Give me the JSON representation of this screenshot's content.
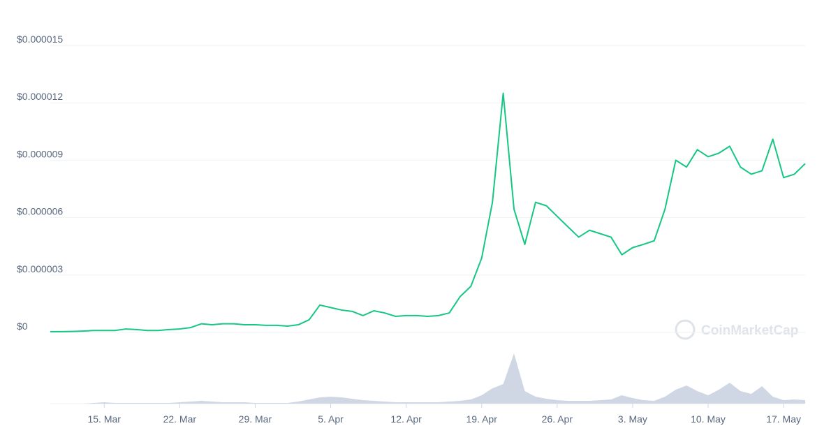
{
  "chart_data": {
    "type": "line",
    "x": [
      "10. Mar",
      "11. Mar",
      "12. Mar",
      "13. Mar",
      "14. Mar",
      "15. Mar",
      "16. Mar",
      "17. Mar",
      "18. Mar",
      "19. Mar",
      "20. Mar",
      "21. Mar",
      "22. Mar",
      "23. Mar",
      "24. Mar",
      "25. Mar",
      "26. Mar",
      "27. Mar",
      "28. Mar",
      "29. Mar",
      "30. Mar",
      "31. Mar",
      "1. Apr",
      "2. Apr",
      "3. Apr",
      "4. Apr",
      "5. Apr",
      "6. Apr",
      "7. Apr",
      "8. Apr",
      "9. Apr",
      "10. Apr",
      "11. Apr",
      "12. Apr",
      "13. Apr",
      "14. Apr",
      "15. Apr",
      "16. Apr",
      "17. Apr",
      "18. Apr",
      "19. Apr",
      "20. Apr",
      "21. Apr",
      "22. Apr",
      "23. Apr",
      "24. Apr",
      "25. Apr",
      "26. Apr",
      "27. Apr",
      "28. Apr",
      "29. Apr",
      "30. Apr",
      "1. May",
      "2. May",
      "3. May",
      "4. May",
      "5. May",
      "6. May",
      "7. May",
      "8. May",
      "9. May",
      "10. May",
      "11. May",
      "12. May",
      "13. May",
      "14. May",
      "15. May",
      "16. May",
      "17. May",
      "18. May",
      "19. May"
    ],
    "series": [
      {
        "name": "Price",
        "color": "#16c784",
        "values": [
          4e-08,
          4e-08,
          5e-08,
          7e-08,
          1e-07,
          1e-07,
          1e-07,
          1.8e-07,
          1.5e-07,
          1e-07,
          1e-07,
          1.5e-07,
          1.8e-07,
          2.5e-07,
          4.5e-07,
          4e-07,
          4.5e-07,
          4.5e-07,
          4e-07,
          4e-07,
          3.7e-07,
          3.7e-07,
          3.3e-07,
          4e-07,
          6.6e-07,
          1.43e-06,
          1.3e-06,
          1.17e-06,
          1.1e-06,
          8.8e-07,
          1.13e-06,
          1.02e-06,
          8.4e-07,
          8.8e-07,
          8.8e-07,
          8.4e-07,
          8.8e-07,
          1.02e-06,
          1.87e-06,
          2.41e-06,
          3.88e-06,
          6.8e-06,
          1.25e-05,
          6.44e-06,
          4.6e-06,
          6.8e-06,
          6.62e-06,
          6.07e-06,
          5.52e-06,
          4.98e-06,
          5.34e-06,
          5.16e-06,
          4.98e-06,
          4.06e-06,
          4.43e-06,
          4.6e-06,
          4.79e-06,
          6.44e-06,
          9e-06,
          8.64e-06,
          9.55e-06,
          9.18e-06,
          9.37e-06,
          9.73e-06,
          8.64e-06,
          8.27e-06,
          8.45e-06,
          1.01e-05,
          8.09e-06,
          8.27e-06,
          8.82e-06
        ]
      },
      {
        "name": "Volume",
        "color": "#cfd6e4",
        "axis": "y2",
        "values": [
          0,
          0,
          0,
          0,
          1,
          2,
          1,
          1,
          1,
          1,
          1,
          1,
          2,
          3,
          4,
          3,
          2,
          2,
          2,
          1,
          1,
          1,
          1,
          3,
          6,
          9,
          10,
          9,
          7,
          5,
          4,
          3,
          2,
          2,
          2,
          2,
          2,
          3,
          4,
          6,
          12,
          22,
          28,
          72,
          18,
          10,
          7,
          5,
          4,
          4,
          4,
          5,
          6,
          12,
          8,
          5,
          4,
          10,
          20,
          26,
          18,
          12,
          20,
          30,
          18,
          14,
          25,
          10,
          5,
          6,
          5
        ]
      }
    ],
    "xticks": [
      "15. Mar",
      "22. Mar",
      "29. Mar",
      "5. Apr",
      "12. Apr",
      "19. Apr",
      "26. Apr",
      "3. May",
      "10. May",
      "17. May"
    ],
    "ylim": [
      0,
      1.5e-05
    ],
    "yticks": [
      {
        "value": 0,
        "label": "$0"
      },
      {
        "value": 3e-06,
        "label": "$0.000003"
      },
      {
        "value": 6e-06,
        "label": "$0.000006"
      },
      {
        "value": 9e-06,
        "label": "$0.000009"
      },
      {
        "value": 1.2e-05,
        "label": "$0.000012"
      },
      {
        "value": 1.5e-05,
        "label": "$0.000015"
      }
    ],
    "y2lim": [
      0,
      75
    ],
    "grid": true,
    "watermark": "CoinMarketCap"
  }
}
